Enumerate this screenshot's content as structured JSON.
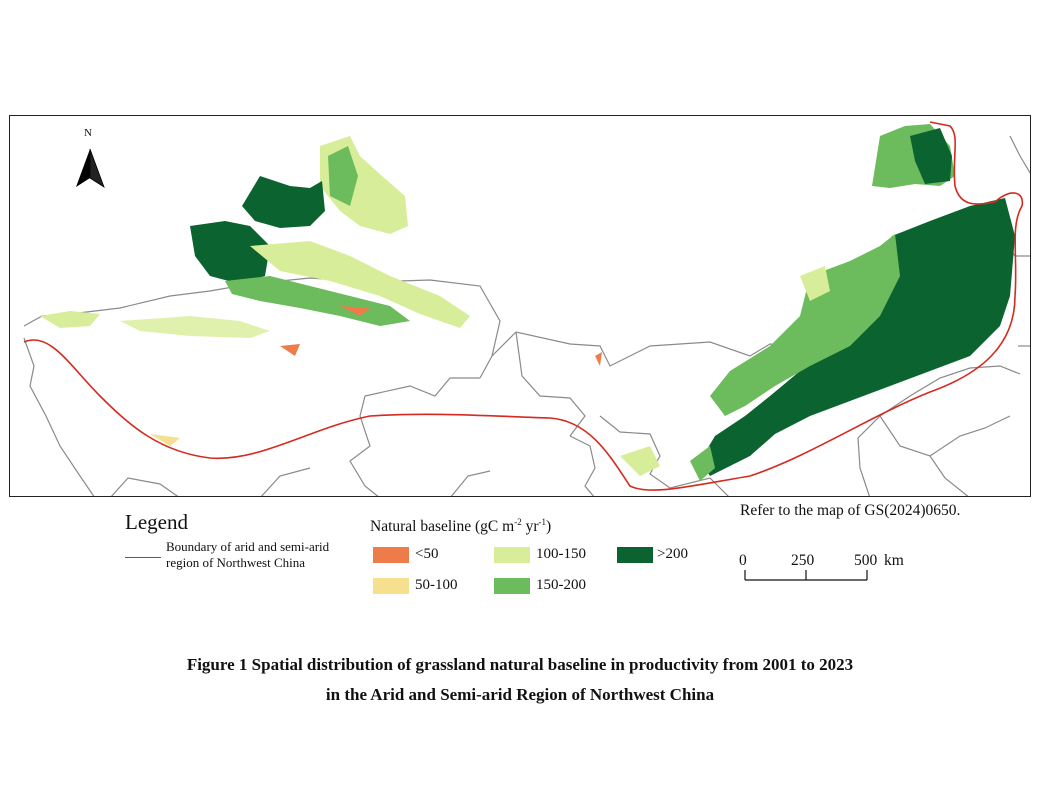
{
  "north_label": "N",
  "legend": {
    "title": "Legend",
    "boundary_label_line1": "Boundary of arid and semi-arid",
    "boundary_label_line2": "region of Northwest China",
    "boundary_color": "#d42a1f"
  },
  "natural_baseline": {
    "title": "Natural baseline (gC m",
    "title_sup1": "-2",
    "title_mid": " yr",
    "title_sup2": "-1",
    "title_end": ")",
    "classes": [
      {
        "label": "<50",
        "color": "#ef7a4a"
      },
      {
        "label": "50-100",
        "color": "#f6df8e"
      },
      {
        "label": "100-150",
        "color": "#d8ed9a"
      },
      {
        "label": "150-200",
        "color": "#6cbb5c"
      },
      {
        "label": ">200",
        "color": "#0b6430"
      }
    ]
  },
  "refer_note": "Refer to the map of GS(2024)0650.",
  "scale_bar": {
    "ticks": [
      "0",
      "250",
      "500"
    ],
    "unit": "km"
  },
  "caption": {
    "line1": "Figure 1  Spatial distribution of grassland natural baseline in productivity from 2001 to 2023",
    "line2": "in the Arid and Semi-arid Region of Northwest China"
  }
}
